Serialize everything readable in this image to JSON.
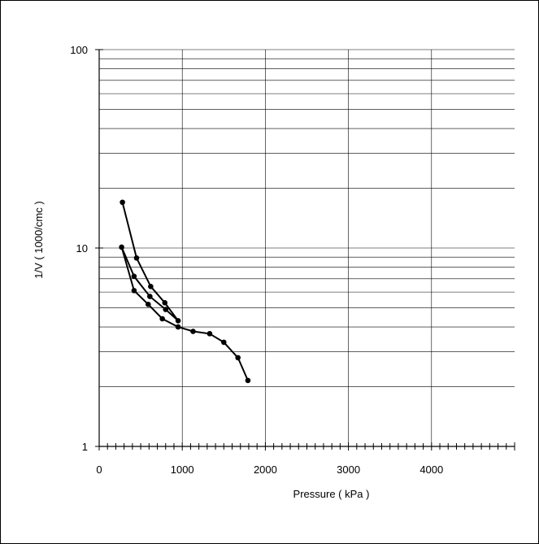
{
  "chart_data": {
    "type": "scatter",
    "title": "",
    "xlabel": "Pressure ( kPa )",
    "ylabel": "1/V ( 1000/cmc )",
    "xlim": [
      0,
      5000
    ],
    "ylim": [
      1,
      100
    ],
    "y_scale": "log",
    "grid": true,
    "x_ticks": [
      0,
      1000,
      2000,
      3000,
      4000
    ],
    "x_tick_labels": [
      "0",
      "1000",
      "2000",
      "3000",
      "4000"
    ],
    "y_ticks": [
      1,
      10,
      100
    ],
    "y_tick_labels": [
      "1",
      "10",
      "100"
    ],
    "series": [
      {
        "color": "#000000",
        "points": [
          [
            280,
            17.0
          ],
          [
            450,
            8.9
          ],
          [
            620,
            6.4
          ],
          [
            790,
            5.3
          ],
          [
            950,
            4.3
          ],
          [
            800,
            4.9
          ],
          [
            610,
            5.7
          ],
          [
            420,
            7.2
          ],
          [
            270,
            10.1
          ],
          [
            420,
            6.1
          ],
          [
            590,
            5.2
          ],
          [
            760,
            4.4
          ],
          [
            950,
            4.0
          ],
          [
            1130,
            3.8
          ],
          [
            1330,
            3.7
          ],
          [
            1500,
            3.35
          ],
          [
            1670,
            2.8
          ],
          [
            1790,
            2.15
          ]
        ]
      }
    ]
  }
}
